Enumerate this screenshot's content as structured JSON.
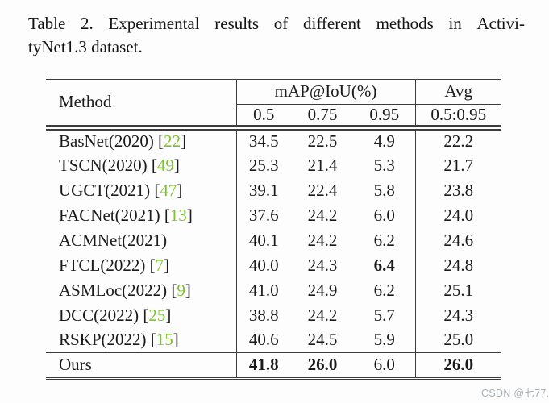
{
  "caption": {
    "line1": "Table 2. Experimental results of different methods in Activi-",
    "line2": "tyNet1.3 dataset."
  },
  "table": {
    "header": {
      "method": "Method",
      "map_group": "mAP@IoU(%)",
      "avg_group": "Avg",
      "iou_cols": [
        "0.5",
        "0.75",
        "0.95"
      ],
      "avg_col": "0.5:0.95"
    },
    "rows": [
      {
        "method": "BasNet(2020)",
        "ref": "22",
        "values": [
          "34.5",
          "22.5",
          "4.9",
          "22.2"
        ],
        "bold": [
          false,
          false,
          false,
          false
        ],
        "ours": false
      },
      {
        "method": "TSCN(2020)",
        "ref": "49",
        "values": [
          "25.3",
          "21.4",
          "5.3",
          "21.7"
        ],
        "bold": [
          false,
          false,
          false,
          false
        ],
        "ours": false
      },
      {
        "method": "UGCT(2021)",
        "ref": "47",
        "values": [
          "39.1",
          "22.4",
          "5.8",
          "23.8"
        ],
        "bold": [
          false,
          false,
          false,
          false
        ],
        "ours": false
      },
      {
        "method": "FACNet(2021)",
        "ref": "13",
        "values": [
          "37.6",
          "24.2",
          "6.0",
          "24.0"
        ],
        "bold": [
          false,
          false,
          false,
          false
        ],
        "ours": false
      },
      {
        "method": "ACMNet(2021)",
        "ref": null,
        "values": [
          "40.1",
          "24.2",
          "6.2",
          "24.6"
        ],
        "bold": [
          false,
          false,
          false,
          false
        ],
        "ours": false
      },
      {
        "method": "FTCL(2022)",
        "ref": "7",
        "values": [
          "40.0",
          "24.3",
          "6.4",
          "24.8"
        ],
        "bold": [
          false,
          false,
          true,
          false
        ],
        "ours": false
      },
      {
        "method": "ASMLoc(2022)",
        "ref": "9",
        "values": [
          "41.0",
          "24.9",
          "6.2",
          "25.1"
        ],
        "bold": [
          false,
          false,
          false,
          false
        ],
        "ours": false
      },
      {
        "method": "DCC(2022)",
        "ref": "25",
        "values": [
          "38.8",
          "24.2",
          "5.7",
          "24.3"
        ],
        "bold": [
          false,
          false,
          false,
          false
        ],
        "ours": false
      },
      {
        "method": "RSKP(2022)",
        "ref": "15",
        "values": [
          "40.6",
          "24.5",
          "5.9",
          "25.0"
        ],
        "bold": [
          false,
          false,
          false,
          false
        ],
        "ours": false
      },
      {
        "method": "Ours",
        "ref": null,
        "values": [
          "41.8",
          "26.0",
          "6.0",
          "26.0"
        ],
        "bold": [
          true,
          true,
          false,
          true
        ],
        "ours": true
      }
    ]
  },
  "watermark": "CSDN @七77.",
  "colors": {
    "text": "#171717",
    "rule": "#3c3c3c",
    "citation_green": "#7cc32f",
    "watermark_gray": "#a7b0b6"
  }
}
